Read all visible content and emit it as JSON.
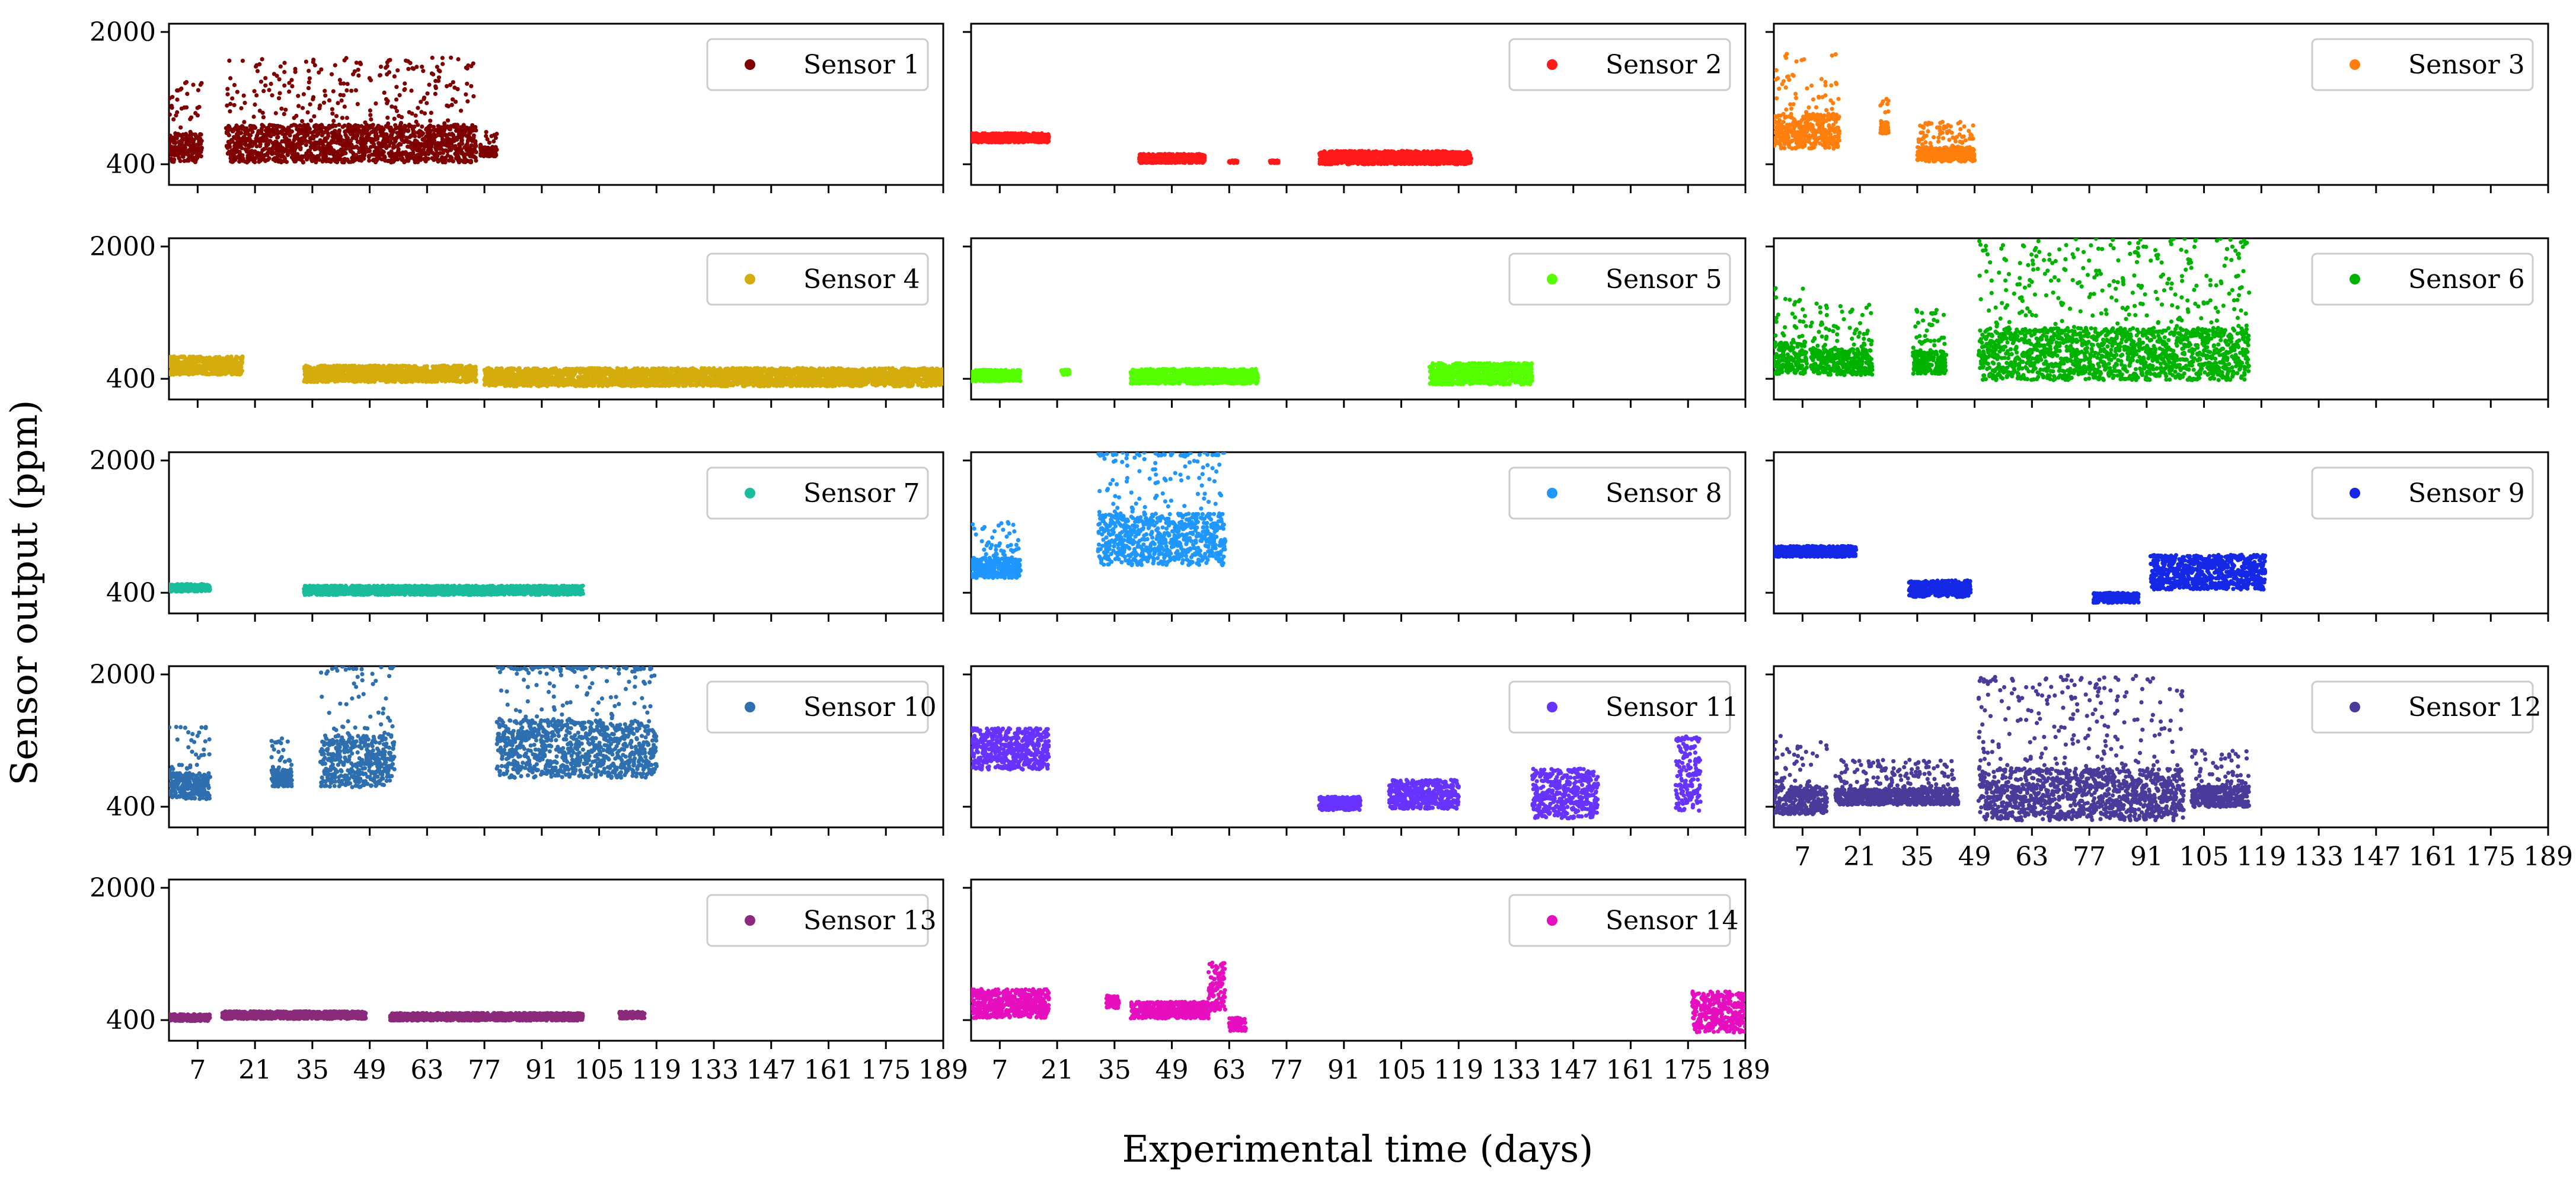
{
  "chart_data": {
    "type": "scatter",
    "layout": "small multiples, 5 rows x 3 columns, shared axes",
    "xlabel": "Experimental time (days)",
    "ylabel": "Sensor output (ppm)",
    "xlim": [
      0,
      189
    ],
    "ylim": [
      150,
      2100
    ],
    "xticks": [
      7,
      21,
      35,
      49,
      63,
      77,
      91,
      105,
      119,
      133,
      147,
      161,
      175,
      189
    ],
    "yticks": [
      400,
      2000
    ],
    "legend_position": "top-right",
    "series": [
      {
        "name": "Sensor 1",
        "color": "#7f0000",
        "pattern": "volatile",
        "segments": [
          [
            0,
            8,
            600,
            500
          ],
          [
            14,
            75,
            650,
            650
          ],
          [
            76,
            80,
            550,
            150
          ]
        ]
      },
      {
        "name": "Sensor 2",
        "color": "#ff1a1a",
        "pattern": "calm",
        "segments": [
          [
            0,
            19,
            720,
            110
          ],
          [
            41,
            57,
            470,
            110
          ],
          [
            63,
            65,
            430,
            30
          ],
          [
            73,
            75,
            430,
            30
          ],
          [
            85,
            122,
            480,
            160
          ]
        ]
      },
      {
        "name": "Sensor 3",
        "color": "#ff7f0e",
        "pattern": "volatile",
        "segments": [
          [
            0,
            16,
            800,
            600
          ],
          [
            26,
            28,
            850,
            220
          ],
          [
            35,
            49,
            520,
            250
          ]
        ]
      },
      {
        "name": "Sensor 4",
        "color": "#d4ac0d",
        "pattern": "calm",
        "segments": [
          [
            0,
            18,
            560,
            220
          ],
          [
            33,
            75,
            460,
            200
          ],
          [
            77,
            189,
            420,
            220
          ]
        ]
      },
      {
        "name": "Sensor 5",
        "color": "#55ff00",
        "pattern": "calm",
        "segments": [
          [
            0,
            12,
            440,
            140
          ],
          [
            22,
            24,
            480,
            60
          ],
          [
            39,
            70,
            430,
            180
          ],
          [
            112,
            137,
            460,
            260
          ]
        ]
      },
      {
        "name": "Sensor 6",
        "color": "#00b300",
        "pattern": "volatile",
        "segments": [
          [
            0,
            8,
            650,
            550
          ],
          [
            9,
            24,
            600,
            450
          ],
          [
            34,
            42,
            600,
            400
          ],
          [
            50,
            116,
            700,
            900
          ]
        ]
      },
      {
        "name": "Sensor 7",
        "color": "#1abc9c",
        "pattern": "calm",
        "segments": [
          [
            0,
            10,
            460,
            90
          ],
          [
            33,
            101,
            430,
            110
          ]
        ]
      },
      {
        "name": "Sensor 8",
        "color": "#1f97ff",
        "pattern": "volatile",
        "segments": [
          [
            0,
            12,
            700,
            350
          ],
          [
            31,
            62,
            1050,
            900
          ]
        ]
      },
      {
        "name": "Sensor 9",
        "color": "#1428e6",
        "pattern": "calm",
        "segments": [
          [
            0,
            20,
            900,
            130
          ],
          [
            33,
            48,
            450,
            200
          ],
          [
            78,
            89,
            340,
            120
          ],
          [
            92,
            120,
            650,
            420
          ]
        ]
      },
      {
        "name": "Sensor 10",
        "color": "#2e6fb0",
        "pattern": "volatile",
        "segments": [
          [
            0,
            10,
            650,
            450
          ],
          [
            25,
            30,
            750,
            300
          ],
          [
            37,
            55,
            950,
            900
          ],
          [
            80,
            119,
            1100,
            1000
          ]
        ]
      },
      {
        "name": "Sensor 11",
        "color": "#6633ff",
        "pattern": "calm",
        "segments": [
          [
            0,
            19,
            1100,
            500
          ],
          [
            85,
            95,
            440,
            160
          ],
          [
            102,
            119,
            550,
            350
          ],
          [
            137,
            153,
            560,
            600
          ],
          [
            172,
            178,
            800,
            900
          ]
        ]
      },
      {
        "name": "Sensor 12",
        "color": "#4b3a99",
        "pattern": "volatile",
        "segments": [
          [
            0,
            13,
            480,
            500
          ],
          [
            15,
            45,
            520,
            280
          ],
          [
            50,
            100,
            550,
            900
          ],
          [
            102,
            116,
            520,
            350
          ]
        ]
      },
      {
        "name": "Sensor 13",
        "color": "#8b2a7a",
        "pattern": "calm",
        "segments": [
          [
            0,
            10,
            430,
            80
          ],
          [
            13,
            48,
            460,
            90
          ],
          [
            54,
            101,
            440,
            90
          ],
          [
            110,
            116,
            460,
            80
          ]
        ]
      },
      {
        "name": "Sensor 14",
        "color": "#e60fbf",
        "pattern": "calm",
        "segments": [
          [
            0,
            19,
            600,
            350
          ],
          [
            33,
            36,
            620,
            150
          ],
          [
            39,
            58,
            520,
            200
          ],
          [
            58,
            62,
            800,
            600
          ],
          [
            63,
            67,
            350,
            160
          ],
          [
            176,
            189,
            500,
            500
          ]
        ]
      }
    ]
  }
}
